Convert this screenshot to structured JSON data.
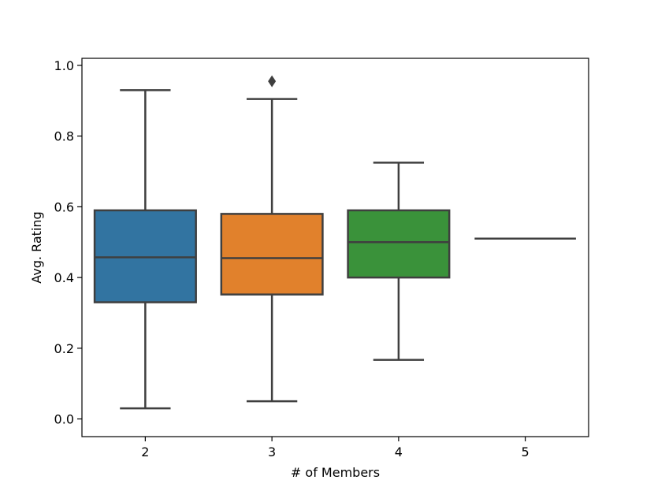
{
  "chart_data": {
    "type": "box",
    "title": "",
    "xlabel": "# of Members",
    "ylabel": "Avg. Rating",
    "ylim": [
      -0.05,
      1.02
    ],
    "yticks": [
      0.0,
      0.2,
      0.4,
      0.6,
      0.8,
      1.0
    ],
    "ytick_labels": [
      "0.0",
      "0.2",
      "0.4",
      "0.6",
      "0.8",
      "1.0"
    ],
    "grid": false,
    "categories": [
      "2",
      "3",
      "4",
      "5"
    ],
    "boxes": [
      {
        "category": "2",
        "color": "#3274a1",
        "whisker_low": 0.03,
        "q1": 0.33,
        "median": 0.457,
        "q3": 0.59,
        "whisker_high": 0.93,
        "outliers": []
      },
      {
        "category": "3",
        "color": "#e1812c",
        "whisker_low": 0.05,
        "q1": 0.352,
        "median": 0.455,
        "q3": 0.58,
        "whisker_high": 0.905,
        "outliers": [
          0.955
        ]
      },
      {
        "category": "4",
        "color": "#3a923a",
        "whisker_low": 0.167,
        "q1": 0.4,
        "median": 0.5,
        "q3": 0.59,
        "whisker_high": 0.725,
        "outliers": []
      },
      {
        "category": "5",
        "color": "#c03d3e",
        "whisker_low": 0.51,
        "q1": 0.51,
        "median": 0.51,
        "q3": 0.51,
        "whisker_high": 0.51,
        "outliers": []
      }
    ]
  }
}
